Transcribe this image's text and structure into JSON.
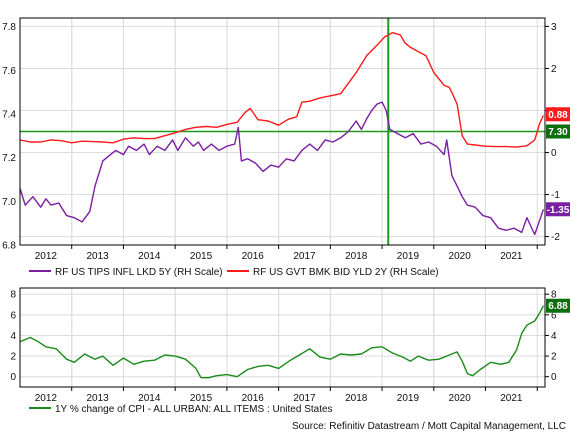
{
  "colors": {
    "tips": "#7a1fa2",
    "govt": "#ff1a1a",
    "cpi": "#1a8a1a",
    "green_line": "#1a9a1a",
    "grid": "#dcdcdc",
    "axis": "#000000"
  },
  "source": "Source: Refinitiv Datastream / Mott Capital Management, LLC",
  "chart_data": [
    {
      "type": "line",
      "x_range": [
        2011.5,
        2021.65
      ],
      "x_ticks": [
        "2012",
        "2013",
        "2014",
        "2015",
        "2016",
        "2017",
        "2018",
        "2019",
        "2020",
        "2021"
      ],
      "left_axis": {
        "ticks": [
          "6.8",
          "7.0",
          "7.2",
          "7.4",
          "7.6",
          "7.8"
        ],
        "ylim": [
          6.8,
          7.84
        ]
      },
      "right_axis": {
        "ticks": [
          "-2",
          "-1",
          "0",
          "1",
          "2",
          "3"
        ],
        "ylim": [
          -2.2,
          3.2
        ]
      },
      "grid": true,
      "legend_position": "bottom",
      "reference_lines": {
        "horizontal_right_axis_value": 0.5,
        "vertical_x": 2018.62
      },
      "series": [
        {
          "name": "RF US TIPS INFL LKD 5Y (RH Scale)",
          "axis": "right",
          "end_label": "-1.35",
          "points": [
            [
              2011.5,
              -0.85
            ],
            [
              2011.6,
              -1.25
            ],
            [
              2011.75,
              -1.05
            ],
            [
              2011.9,
              -1.3
            ],
            [
              2012.0,
              -1.1
            ],
            [
              2012.1,
              -1.25
            ],
            [
              2012.25,
              -1.2
            ],
            [
              2012.4,
              -1.5
            ],
            [
              2012.55,
              -1.55
            ],
            [
              2012.7,
              -1.65
            ],
            [
              2012.85,
              -1.4
            ],
            [
              2012.95,
              -0.8
            ],
            [
              2013.1,
              -0.2
            ],
            [
              2013.2,
              -0.1
            ],
            [
              2013.35,
              0.05
            ],
            [
              2013.5,
              -0.05
            ],
            [
              2013.6,
              0.15
            ],
            [
              2013.75,
              0.05
            ],
            [
              2013.9,
              0.2
            ],
            [
              2014.0,
              -0.05
            ],
            [
              2014.15,
              0.15
            ],
            [
              2014.3,
              0.05
            ],
            [
              2014.45,
              0.3
            ],
            [
              2014.55,
              0.05
            ],
            [
              2014.7,
              0.35
            ],
            [
              2014.85,
              0.15
            ],
            [
              2014.95,
              0.25
            ],
            [
              2015.05,
              0.05
            ],
            [
              2015.2,
              0.2
            ],
            [
              2015.35,
              0.05
            ],
            [
              2015.5,
              0.15
            ],
            [
              2015.65,
              0.2
            ],
            [
              2015.72,
              0.6
            ],
            [
              2015.78,
              -0.2
            ],
            [
              2015.9,
              -0.15
            ],
            [
              2016.05,
              -0.25
            ],
            [
              2016.2,
              -0.45
            ],
            [
              2016.35,
              -0.3
            ],
            [
              2016.5,
              -0.35
            ],
            [
              2016.65,
              -0.15
            ],
            [
              2016.8,
              -0.2
            ],
            [
              2016.95,
              0.05
            ],
            [
              2017.1,
              0.2
            ],
            [
              2017.25,
              0.05
            ],
            [
              2017.4,
              0.3
            ],
            [
              2017.55,
              0.25
            ],
            [
              2017.7,
              0.35
            ],
            [
              2017.85,
              0.5
            ],
            [
              2018.0,
              0.75
            ],
            [
              2018.1,
              0.55
            ],
            [
              2018.2,
              0.8
            ],
            [
              2018.3,
              1.0
            ],
            [
              2018.4,
              1.15
            ],
            [
              2018.5,
              1.2
            ],
            [
              2018.58,
              1.0
            ],
            [
              2018.65,
              0.55
            ],
            [
              2018.8,
              0.45
            ],
            [
              2018.95,
              0.35
            ],
            [
              2019.1,
              0.45
            ],
            [
              2019.25,
              0.2
            ],
            [
              2019.4,
              0.25
            ],
            [
              2019.55,
              0.15
            ],
            [
              2019.7,
              -0.05
            ],
            [
              2019.75,
              0.3
            ],
            [
              2019.85,
              -0.55
            ],
            [
              2019.95,
              -0.8
            ],
            [
              2020.05,
              -1.05
            ],
            [
              2020.15,
              -1.25
            ],
            [
              2020.3,
              -1.3
            ],
            [
              2020.45,
              -1.5
            ],
            [
              2020.6,
              -1.55
            ],
            [
              2020.75,
              -1.8
            ],
            [
              2020.9,
              -1.85
            ],
            [
              2021.05,
              -1.8
            ],
            [
              2021.2,
              -1.9
            ],
            [
              2021.3,
              -1.55
            ],
            [
              2021.45,
              -1.95
            ],
            [
              2021.55,
              -1.6
            ],
            [
              2021.62,
              -1.35
            ]
          ]
        },
        {
          "name": "RF US GVT BMK BID YLD 2Y (RH Scale)",
          "axis": "right",
          "end_label": "0.88",
          "points": [
            [
              2011.5,
              0.3
            ],
            [
              2011.7,
              0.25
            ],
            [
              2011.9,
              0.25
            ],
            [
              2012.1,
              0.3
            ],
            [
              2012.3,
              0.28
            ],
            [
              2012.5,
              0.23
            ],
            [
              2012.7,
              0.27
            ],
            [
              2012.9,
              0.26
            ],
            [
              2013.1,
              0.25
            ],
            [
              2013.3,
              0.23
            ],
            [
              2013.5,
              0.32
            ],
            [
              2013.7,
              0.35
            ],
            [
              2013.9,
              0.33
            ],
            [
              2014.1,
              0.33
            ],
            [
              2014.3,
              0.4
            ],
            [
              2014.5,
              0.47
            ],
            [
              2014.7,
              0.55
            ],
            [
              2014.9,
              0.6
            ],
            [
              2015.1,
              0.62
            ],
            [
              2015.3,
              0.6
            ],
            [
              2015.5,
              0.67
            ],
            [
              2015.7,
              0.72
            ],
            [
              2015.85,
              0.95
            ],
            [
              2015.95,
              1.05
            ],
            [
              2016.1,
              0.78
            ],
            [
              2016.3,
              0.75
            ],
            [
              2016.5,
              0.65
            ],
            [
              2016.7,
              0.8
            ],
            [
              2016.85,
              0.85
            ],
            [
              2016.95,
              1.2
            ],
            [
              2017.1,
              1.22
            ],
            [
              2017.3,
              1.3
            ],
            [
              2017.5,
              1.35
            ],
            [
              2017.7,
              1.4
            ],
            [
              2017.85,
              1.65
            ],
            [
              2018.0,
              1.9
            ],
            [
              2018.2,
              2.3
            ],
            [
              2018.4,
              2.55
            ],
            [
              2018.55,
              2.75
            ],
            [
              2018.7,
              2.85
            ],
            [
              2018.85,
              2.8
            ],
            [
              2018.95,
              2.6
            ],
            [
              2019.05,
              2.5
            ],
            [
              2019.2,
              2.4
            ],
            [
              2019.35,
              2.3
            ],
            [
              2019.5,
              1.9
            ],
            [
              2019.6,
              1.75
            ],
            [
              2019.7,
              1.6
            ],
            [
              2019.8,
              1.55
            ],
            [
              2019.88,
              1.35
            ],
            [
              2019.95,
              1.15
            ],
            [
              2020.05,
              0.4
            ],
            [
              2020.15,
              0.2
            ],
            [
              2020.3,
              0.18
            ],
            [
              2020.5,
              0.15
            ],
            [
              2020.7,
              0.14
            ],
            [
              2020.9,
              0.14
            ],
            [
              2021.1,
              0.13
            ],
            [
              2021.3,
              0.16
            ],
            [
              2021.45,
              0.3
            ],
            [
              2021.55,
              0.7
            ],
            [
              2021.62,
              0.88
            ]
          ]
        }
      ]
    },
    {
      "type": "line",
      "x_range": [
        2011.5,
        2021.65
      ],
      "x_ticks": [
        "2012",
        "2013",
        "2014",
        "2015",
        "2016",
        "2017",
        "2018",
        "2019",
        "2020",
        "2021"
      ],
      "left_axis": {
        "ticks": [
          "0",
          "2",
          "4",
          "6",
          "8"
        ],
        "ylim": [
          -1,
          8.6
        ]
      },
      "right_axis": {
        "ticks": [
          "0",
          "2",
          "4",
          "6",
          "8"
        ],
        "ylim": [
          -1,
          8.6
        ]
      },
      "grid": true,
      "legend_position": "bottom",
      "series": [
        {
          "name": "1Y % change of CPI - ALL URBAN: ALL ITEMS : United States",
          "axis": "right",
          "end_label": "6.88",
          "points": [
            [
              2011.5,
              3.4
            ],
            [
              2011.7,
              3.8
            ],
            [
              2011.85,
              3.4
            ],
            [
              2012.0,
              2.9
            ],
            [
              2012.2,
              2.7
            ],
            [
              2012.4,
              1.7
            ],
            [
              2012.55,
              1.4
            ],
            [
              2012.75,
              2.2
            ],
            [
              2012.95,
              1.7
            ],
            [
              2013.1,
              2.0
            ],
            [
              2013.3,
              1.1
            ],
            [
              2013.5,
              1.8
            ],
            [
              2013.7,
              1.2
            ],
            [
              2013.9,
              1.5
            ],
            [
              2014.1,
              1.6
            ],
            [
              2014.3,
              2.1
            ],
            [
              2014.5,
              2.0
            ],
            [
              2014.7,
              1.7
            ],
            [
              2014.9,
              0.8
            ],
            [
              2015.0,
              -0.1
            ],
            [
              2015.15,
              -0.1
            ],
            [
              2015.3,
              0.1
            ],
            [
              2015.5,
              0.2
            ],
            [
              2015.7,
              0.0
            ],
            [
              2015.9,
              0.7
            ],
            [
              2016.1,
              1.0
            ],
            [
              2016.3,
              1.1
            ],
            [
              2016.5,
              0.8
            ],
            [
              2016.7,
              1.5
            ],
            [
              2016.9,
              2.1
            ],
            [
              2017.1,
              2.7
            ],
            [
              2017.3,
              1.9
            ],
            [
              2017.5,
              1.7
            ],
            [
              2017.7,
              2.2
            ],
            [
              2017.9,
              2.1
            ],
            [
              2018.1,
              2.2
            ],
            [
              2018.3,
              2.8
            ],
            [
              2018.5,
              2.9
            ],
            [
              2018.7,
              2.3
            ],
            [
              2018.9,
              1.9
            ],
            [
              2019.05,
              1.5
            ],
            [
              2019.2,
              2.0
            ],
            [
              2019.4,
              1.6
            ],
            [
              2019.6,
              1.7
            ],
            [
              2019.8,
              2.1
            ],
            [
              2019.95,
              2.4
            ],
            [
              2020.05,
              1.5
            ],
            [
              2020.15,
              0.3
            ],
            [
              2020.25,
              0.1
            ],
            [
              2020.4,
              0.7
            ],
            [
              2020.6,
              1.4
            ],
            [
              2020.8,
              1.2
            ],
            [
              2020.95,
              1.4
            ],
            [
              2021.1,
              2.6
            ],
            [
              2021.2,
              4.2
            ],
            [
              2021.3,
              5.0
            ],
            [
              2021.45,
              5.4
            ],
            [
              2021.55,
              6.2
            ],
            [
              2021.62,
              6.88
            ]
          ]
        }
      ]
    }
  ]
}
